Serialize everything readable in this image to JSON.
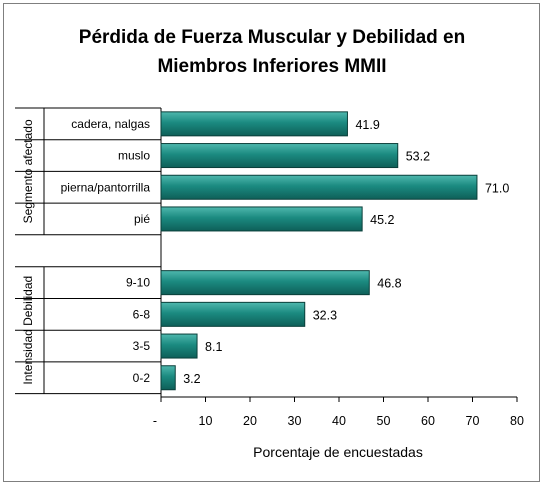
{
  "chart_data": {
    "type": "bar",
    "orientation": "horizontal",
    "title_lines": [
      "Pérdida de Fuerza Muscular y Debilidad en",
      "Miembros Inferiores MMII"
    ],
    "xlabel": "Porcentaje de encuestadas",
    "xlim": [
      0,
      80
    ],
    "xticks": [
      "-",
      "10",
      "20",
      "30",
      "40",
      "50",
      "60",
      "70",
      "80"
    ],
    "grid": false,
    "legend": "none",
    "bar_color": "#1b8a80",
    "groups": [
      {
        "name": "Segmento afectado",
        "categories": [
          "cadera, nalgas",
          "muslo",
          "pierna/pantorrilla",
          "pié"
        ],
        "values": [
          41.9,
          53.2,
          71.0,
          45.2
        ],
        "value_labels": [
          "41.9",
          "53.2",
          "71.0",
          "45.2"
        ]
      },
      {
        "name": "Intensidad Debilidad",
        "categories": [
          "9-10",
          "6-8",
          "3-5",
          "0-2"
        ],
        "values": [
          46.8,
          32.3,
          8.1,
          3.2
        ],
        "value_labels": [
          "46.8",
          "32.3",
          "8.1",
          "3.2"
        ]
      }
    ]
  }
}
